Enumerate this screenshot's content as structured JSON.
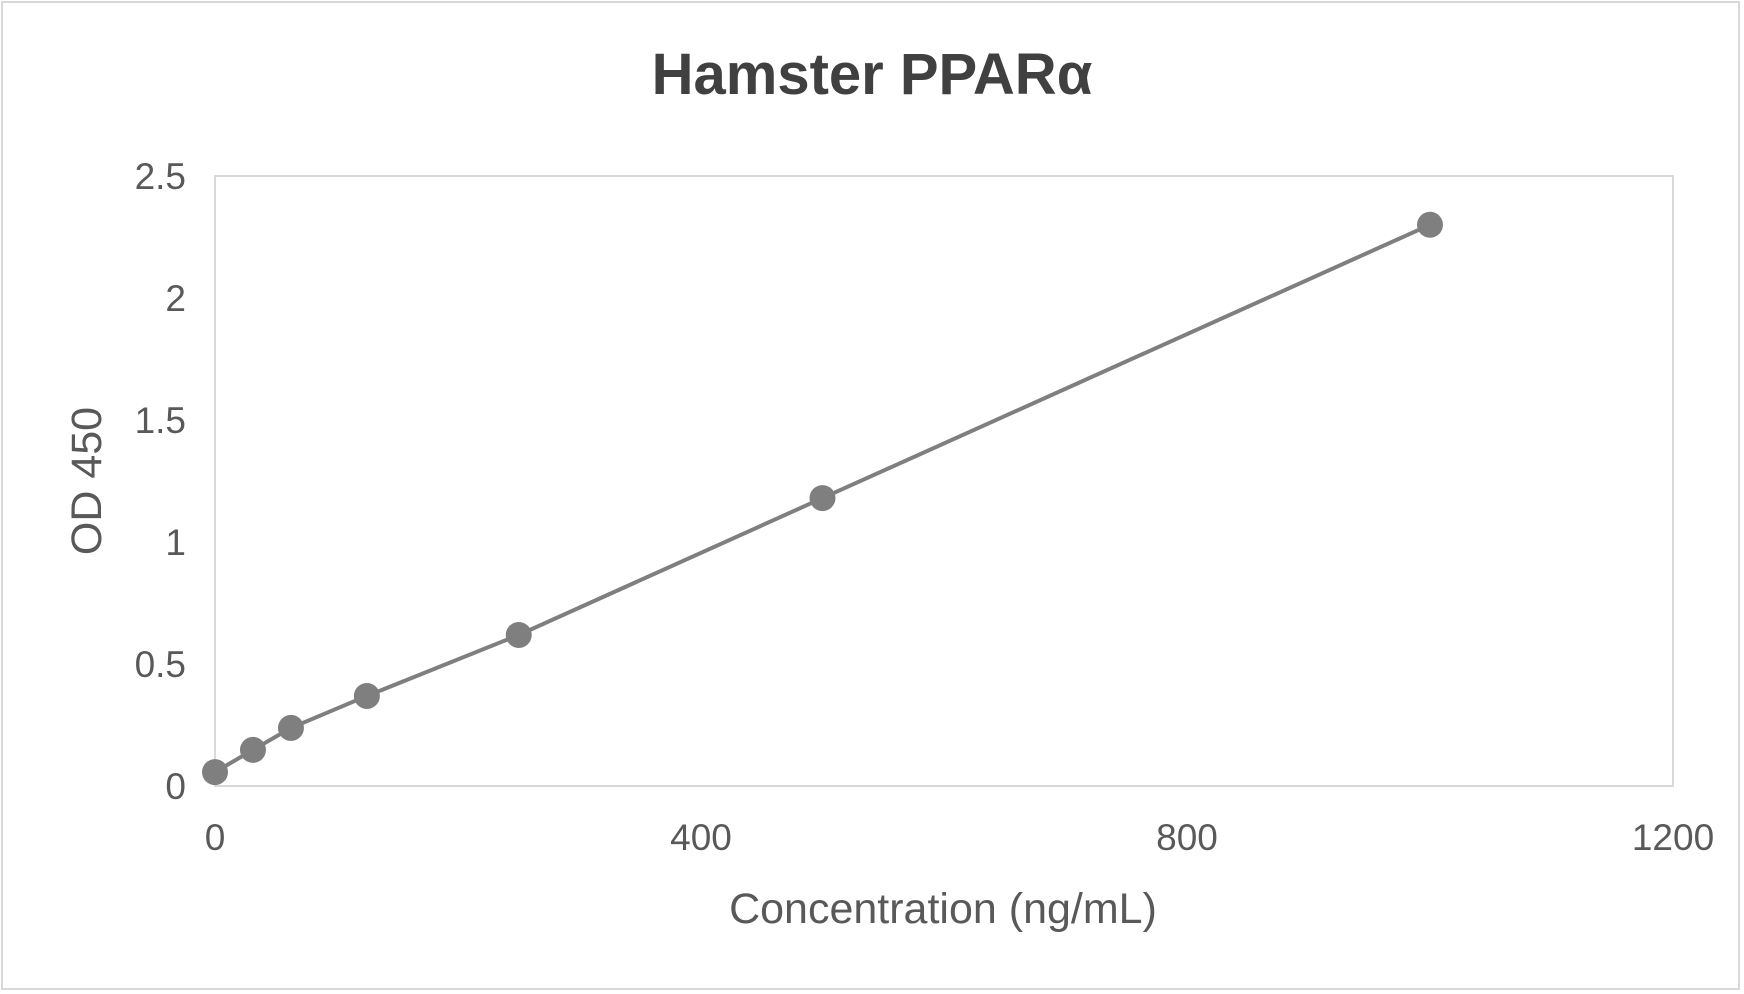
{
  "chart": {
    "title": "Hamster PPARα",
    "xlabel": "Concentration (ng/mL)",
    "ylabel": "OD 450",
    "line_color": "#7f7f7f",
    "marker_color": "#7f7f7f",
    "plot_border_color": "#d9d9d9",
    "text_color": "#595959"
  },
  "chart_data": {
    "type": "scatter",
    "title": "Hamster PPARα",
    "xlabel": "Concentration (ng/mL)",
    "ylabel": "OD 450",
    "xlim": [
      0,
      1200
    ],
    "ylim": [
      0,
      2.5
    ],
    "x_ticks": [
      0,
      400,
      800,
      1200
    ],
    "x_tick_labels": [
      "0",
      "400",
      "800",
      "1200"
    ],
    "y_ticks": [
      0,
      0.5,
      1,
      1.5,
      2,
      2.5
    ],
    "y_tick_labels": [
      "0",
      "0.5",
      "1",
      "1.5",
      "2",
      "2.5"
    ],
    "grid": false,
    "legend": null,
    "series": [
      {
        "name": "Hamster PPARα",
        "style": "line+markers",
        "x": [
          0,
          31.25,
          62.5,
          125,
          250,
          500,
          1000
        ],
        "y": [
          0.057,
          0.148,
          0.238,
          0.369,
          0.619,
          1.18,
          2.3
        ]
      }
    ]
  }
}
